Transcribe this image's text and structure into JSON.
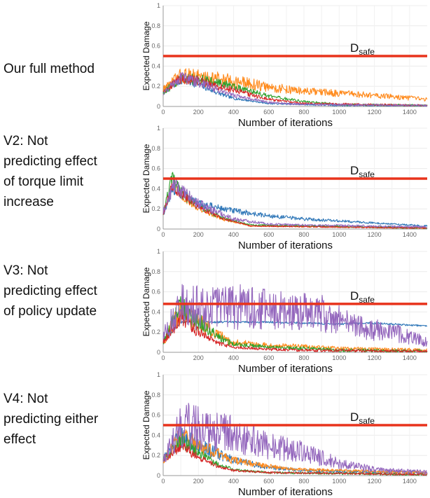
{
  "colors": {
    "threshold": "#e8331c",
    "series": {
      "blue": "#2f77b8",
      "orange": "#ff8a1c",
      "green": "#2ea02c",
      "red": "#d62728",
      "purple": "#9467bd"
    }
  },
  "chart_data": [
    {
      "type": "line",
      "row_label": "Our full method",
      "ylabel": "Expected Damage",
      "xlabel": "Number of iterations",
      "xlim": [
        0,
        1500
      ],
      "ylim": [
        0,
        1
      ],
      "xticks": [
        "0",
        "200",
        "400",
        "600",
        "800",
        "1000",
        "1200",
        "1400"
      ],
      "yticks": [
        "0",
        "0.2",
        "0.4",
        "0.6",
        "0.8",
        "1"
      ],
      "threshold": {
        "value": 0.5,
        "label": "D",
        "subscript": "safe"
      },
      "series": [
        {
          "name": "blue",
          "points": [
            [
              0,
              0.15
            ],
            [
              100,
              0.26
            ],
            [
              200,
              0.22
            ],
            [
              300,
              0.14
            ],
            [
              400,
              0.08
            ],
            [
              600,
              0.03
            ],
            [
              1000,
              0.01
            ],
            [
              1500,
              0.01
            ]
          ],
          "noise": 0.05
        },
        {
          "name": "orange",
          "points": [
            [
              0,
              0.17
            ],
            [
              100,
              0.3
            ],
            [
              200,
              0.3
            ],
            [
              400,
              0.25
            ],
            [
              600,
              0.19
            ],
            [
              800,
              0.15
            ],
            [
              1000,
              0.13
            ],
            [
              1200,
              0.11
            ],
            [
              1500,
              0.07
            ]
          ],
          "noise": 0.08
        },
        {
          "name": "green",
          "points": [
            [
              0,
              0.14
            ],
            [
              100,
              0.27
            ],
            [
              200,
              0.27
            ],
            [
              400,
              0.2
            ],
            [
              600,
              0.1
            ],
            [
              800,
              0.05
            ],
            [
              1000,
              0.02
            ],
            [
              1500,
              0.01
            ]
          ],
          "noise": 0.06
        },
        {
          "name": "red",
          "points": [
            [
              0,
              0.16
            ],
            [
              100,
              0.28
            ],
            [
              200,
              0.25
            ],
            [
              400,
              0.16
            ],
            [
              600,
              0.07
            ],
            [
              800,
              0.03
            ],
            [
              1500,
              0.01
            ]
          ],
          "noise": 0.06
        },
        {
          "name": "purple",
          "points": [
            [
              0,
              0.13
            ],
            [
              100,
              0.3
            ],
            [
              200,
              0.24
            ],
            [
              400,
              0.11
            ],
            [
              600,
              0.04
            ],
            [
              800,
              0.02
            ],
            [
              1500,
              0.01
            ]
          ],
          "noise": 0.06
        }
      ]
    },
    {
      "type": "line",
      "row_label": "V2: Not\npredicting effect\nof torque limit\nincrease",
      "ylabel": "Expected Damage",
      "xlabel": "Number of iterations",
      "xlim": [
        0,
        1500
      ],
      "ylim": [
        0,
        1
      ],
      "xticks": [
        "0",
        "200",
        "400",
        "600",
        "800",
        "1000",
        "1200",
        "1400"
      ],
      "yticks": [
        "0",
        "0.2",
        "0.4",
        "0.6",
        "0.8",
        "1"
      ],
      "threshold": {
        "value": 0.5,
        "label": "D",
        "subscript": "safe"
      },
      "series": [
        {
          "name": "orange",
          "points": [
            [
              0,
              0.15
            ],
            [
              50,
              0.42
            ],
            [
              100,
              0.33
            ],
            [
              200,
              0.2
            ],
            [
              350,
              0.09
            ],
            [
              500,
              0.03
            ],
            [
              1500,
              0.01
            ]
          ],
          "noise": 0.04
        },
        {
          "name": "green",
          "points": [
            [
              0,
              0.15
            ],
            [
              50,
              0.5
            ],
            [
              100,
              0.36
            ],
            [
              200,
              0.22
            ],
            [
              350,
              0.1
            ],
            [
              500,
              0.04
            ],
            [
              1500,
              0.01
            ]
          ],
          "noise": 0.05
        },
        {
          "name": "red",
          "points": [
            [
              0,
              0.15
            ],
            [
              50,
              0.42
            ],
            [
              100,
              0.35
            ],
            [
              200,
              0.22
            ],
            [
              350,
              0.1
            ],
            [
              500,
              0.03
            ],
            [
              1500,
              0.01
            ]
          ],
          "noise": 0.04
        },
        {
          "name": "blue",
          "points": [
            [
              0,
              0.15
            ],
            [
              60,
              0.4
            ],
            [
              200,
              0.25
            ],
            [
              400,
              0.18
            ],
            [
              600,
              0.13
            ],
            [
              800,
              0.1
            ],
            [
              1000,
              0.08
            ],
            [
              1200,
              0.06
            ],
            [
              1500,
              0.03
            ]
          ],
          "noise": 0.05
        },
        {
          "name": "purple",
          "points": [
            [
              0,
              0.16
            ],
            [
              60,
              0.44
            ],
            [
              100,
              0.38
            ],
            [
              200,
              0.25
            ],
            [
              400,
              0.1
            ],
            [
              600,
              0.05
            ],
            [
              800,
              0.04
            ],
            [
              1500,
              0.02
            ]
          ],
          "noise": 0.06
        }
      ]
    },
    {
      "type": "line",
      "row_label": "V3: Not\npredicting effect\nof policy update",
      "ylabel": "Expected Damage",
      "xlabel": "Number of iterations",
      "xlim": [
        0,
        1500
      ],
      "ylim": [
        0,
        1
      ],
      "xticks": [
        "0",
        "200",
        "400",
        "600",
        "800",
        "1000",
        "1200",
        "1400"
      ],
      "yticks": [
        "0",
        "0.2",
        "0.4",
        "0.6",
        "0.8",
        "1"
      ],
      "threshold": {
        "value": 0.48,
        "label": "D",
        "subscript": "safe"
      },
      "series": [
        {
          "name": "blue",
          "points": [
            [
              0,
              0.1
            ],
            [
              100,
              0.3
            ],
            [
              200,
              0.3
            ],
            [
              400,
              0.3
            ],
            [
              600,
              0.3
            ],
            [
              800,
              0.29
            ],
            [
              1000,
              0.28
            ],
            [
              1200,
              0.29
            ],
            [
              1400,
              0.27
            ],
            [
              1500,
              0.26
            ]
          ],
          "noise": 0.01
        },
        {
          "name": "orange",
          "points": [
            [
              0,
              0.1
            ],
            [
              100,
              0.42
            ],
            [
              200,
              0.3
            ],
            [
              300,
              0.18
            ],
            [
              400,
              0.1
            ],
            [
              600,
              0.07
            ],
            [
              800,
              0.06
            ],
            [
              1000,
              0.04
            ],
            [
              1500,
              0.02
            ]
          ],
          "noise": 0.1
        },
        {
          "name": "green",
          "points": [
            [
              0,
              0.1
            ],
            [
              100,
              0.45
            ],
            [
              200,
              0.3
            ],
            [
              300,
              0.16
            ],
            [
              400,
              0.08
            ],
            [
              600,
              0.05
            ],
            [
              800,
              0.04
            ],
            [
              1000,
              0.02
            ],
            [
              1500,
              0.01
            ]
          ],
          "noise": 0.1
        },
        {
          "name": "red",
          "points": [
            [
              0,
              0.1
            ],
            [
              100,
              0.35
            ],
            [
              200,
              0.2
            ],
            [
              300,
              0.1
            ],
            [
              400,
              0.05
            ],
            [
              600,
              0.03
            ],
            [
              800,
              0.02
            ],
            [
              1500,
              0.01
            ]
          ],
          "noise": 0.08
        },
        {
          "name": "purple",
          "points": [
            [
              0,
              0.15
            ],
            [
              100,
              0.45
            ],
            [
              300,
              0.45
            ],
            [
              500,
              0.45
            ],
            [
              700,
              0.4
            ],
            [
              900,
              0.38
            ],
            [
              1000,
              0.32
            ],
            [
              1100,
              0.25
            ],
            [
              1300,
              0.2
            ],
            [
              1400,
              0.15
            ],
            [
              1500,
              0.1
            ]
          ],
          "noise": 0.15
        }
      ]
    },
    {
      "type": "line",
      "row_label": "V4: Not\npredicting either\neffect",
      "ylabel": "Expected Damage",
      "xlabel": "Number of iterations",
      "xlim": [
        0,
        1500
      ],
      "ylim": [
        0,
        1
      ],
      "xticks": [
        "0",
        "200",
        "400",
        "600",
        "800",
        "1000",
        "1200",
        "1400"
      ],
      "yticks": [
        "0",
        "0.2",
        "0.4",
        "0.6",
        "0.8",
        "1"
      ],
      "threshold": {
        "value": 0.5,
        "label": "D",
        "subscript": "safe"
      },
      "series": [
        {
          "name": "blue",
          "points": [
            [
              0,
              0.15
            ],
            [
              100,
              0.4
            ],
            [
              200,
              0.3
            ],
            [
              400,
              0.15
            ],
            [
              600,
              0.08
            ],
            [
              800,
              0.05
            ],
            [
              1000,
              0.04
            ],
            [
              1500,
              0.03
            ]
          ],
          "noise": 0.08
        },
        {
          "name": "orange",
          "points": [
            [
              0,
              0.15
            ],
            [
              100,
              0.4
            ],
            [
              200,
              0.3
            ],
            [
              400,
              0.15
            ],
            [
              600,
              0.09
            ],
            [
              800,
              0.06
            ],
            [
              1000,
              0.05
            ],
            [
              1500,
              0.03
            ]
          ],
          "noise": 0.08
        },
        {
          "name": "green",
          "points": [
            [
              0,
              0.15
            ],
            [
              100,
              0.35
            ],
            [
              200,
              0.22
            ],
            [
              300,
              0.12
            ],
            [
              400,
              0.06
            ],
            [
              600,
              0.03
            ],
            [
              1500,
              0.01
            ]
          ],
          "noise": 0.07
        },
        {
          "name": "red",
          "points": [
            [
              0,
              0.15
            ],
            [
              100,
              0.3
            ],
            [
              200,
              0.18
            ],
            [
              300,
              0.1
            ],
            [
              400,
              0.05
            ],
            [
              600,
              0.03
            ],
            [
              1500,
              0.01
            ]
          ],
          "noise": 0.06
        },
        {
          "name": "purple",
          "points": [
            [
              0,
              0.15
            ],
            [
              100,
              0.5
            ],
            [
              200,
              0.48
            ],
            [
              300,
              0.45
            ],
            [
              400,
              0.4
            ],
            [
              600,
              0.3
            ],
            [
              800,
              0.23
            ],
            [
              1000,
              0.12
            ],
            [
              1200,
              0.06
            ],
            [
              1500,
              0.03
            ]
          ],
          "noise": 0.14
        }
      ]
    }
  ]
}
